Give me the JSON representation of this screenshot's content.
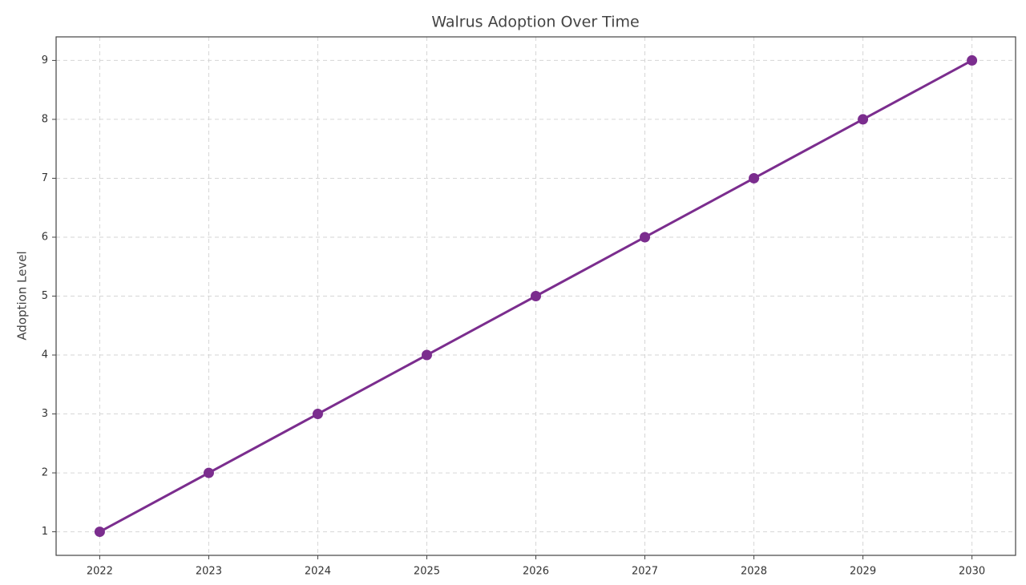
{
  "chart_data": {
    "type": "line",
    "title": "Walrus Adoption Over Time",
    "y_label": "Adoption Level",
    "x": [
      2022,
      2023,
      2024,
      2025,
      2026,
      2027,
      2028,
      2029,
      2030
    ],
    "series": [
      {
        "name": "Adoption",
        "color": "#7b2d8e",
        "values": [
          1,
          2,
          3,
          4,
          5,
          6,
          7,
          8,
          9
        ]
      }
    ],
    "xlim": [
      2021.6,
      2030.4
    ],
    "xticks": [
      2022,
      2023,
      2024,
      2025,
      2026,
      2027,
      2028,
      2029,
      2030
    ],
    "ylim": [
      0.6,
      9.4
    ],
    "yticks": [
      1,
      2,
      3,
      4,
      5,
      6,
      7,
      8,
      9
    ],
    "grid": true
  }
}
